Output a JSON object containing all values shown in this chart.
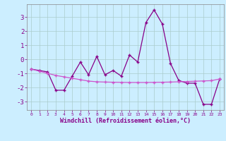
{
  "xlabel": "Windchill (Refroidissement éolien,°C)",
  "ylabel": "",
  "background_color": "#cceeff",
  "grid_color": "#aacccc",
  "line1_color": "#880088",
  "line2_color": "#cc55cc",
  "xlim": [
    -0.5,
    23.5
  ],
  "ylim": [
    -3.6,
    3.9
  ],
  "xticks": [
    0,
    1,
    2,
    3,
    4,
    5,
    6,
    7,
    8,
    9,
    10,
    11,
    12,
    13,
    14,
    15,
    16,
    17,
    18,
    19,
    20,
    21,
    22,
    23
  ],
  "yticks": [
    -3,
    -2,
    -1,
    0,
    1,
    2,
    3
  ],
  "x": [
    0,
    1,
    2,
    3,
    4,
    5,
    6,
    7,
    8,
    9,
    10,
    11,
    12,
    13,
    14,
    15,
    16,
    17,
    18,
    19,
    20,
    21,
    22,
    23
  ],
  "line1_y": [
    -0.7,
    -0.8,
    -0.9,
    -2.2,
    -2.2,
    -1.2,
    -0.2,
    -1.1,
    0.2,
    -1.1,
    -0.8,
    -1.2,
    0.3,
    -0.2,
    2.6,
    3.5,
    2.5,
    -0.3,
    -1.5,
    -1.7,
    -1.7,
    -3.2,
    -3.2,
    -1.4
  ],
  "line2_y": [
    -0.7,
    -0.85,
    -1.0,
    -1.15,
    -1.25,
    -1.35,
    -1.45,
    -1.55,
    -1.6,
    -1.62,
    -1.63,
    -1.64,
    -1.65,
    -1.65,
    -1.65,
    -1.64,
    -1.63,
    -1.62,
    -1.6,
    -1.58,
    -1.56,
    -1.54,
    -1.52,
    -1.4
  ]
}
